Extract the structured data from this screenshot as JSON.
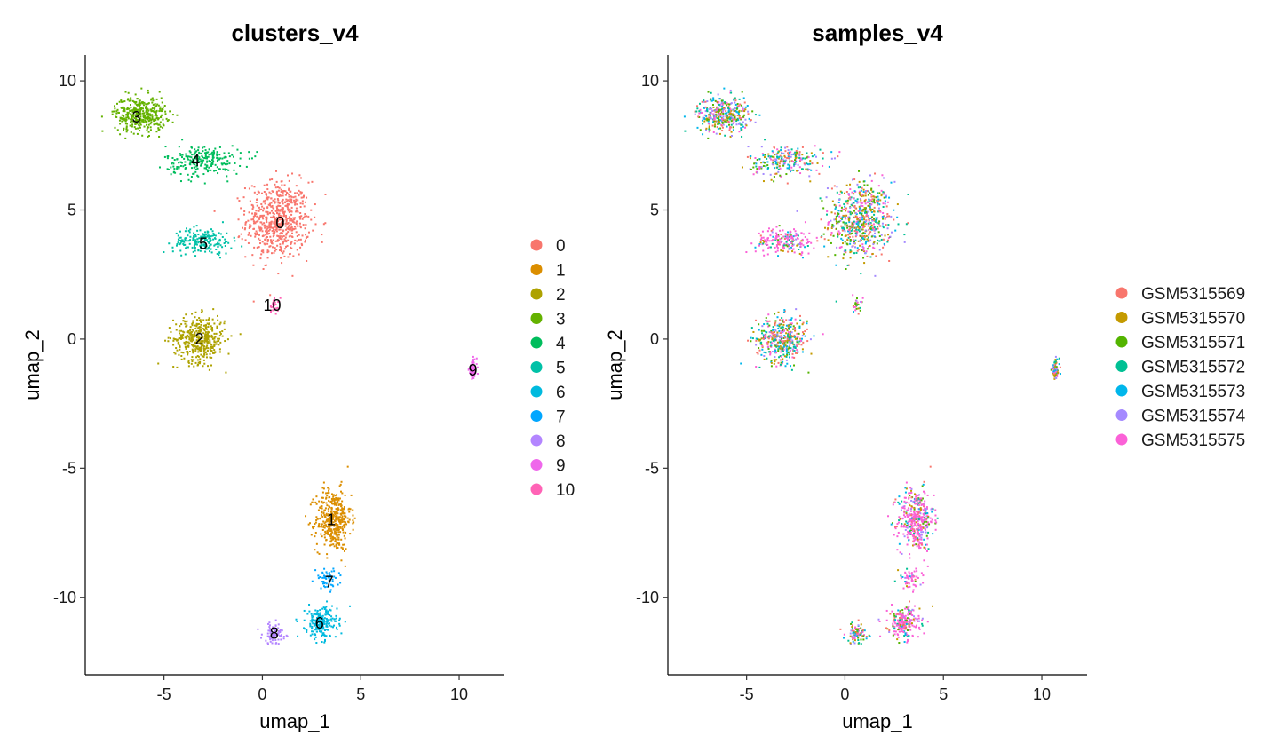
{
  "chart_data": [
    {
      "type": "scatter",
      "title": "clusters_v4",
      "xlabel": "umap_1",
      "ylabel": "umap_2",
      "xlim": [
        -9,
        12.3
      ],
      "ylim": [
        -13,
        11
      ],
      "xticks": [
        -5,
        0,
        5,
        10
      ],
      "yticks": [
        -10,
        -5,
        0,
        5,
        10
      ],
      "xtick_labels": [
        "-5",
        "0",
        "5",
        "10"
      ],
      "ytick_labels": [
        "-10",
        "-5",
        "0",
        "5",
        "10"
      ],
      "grid": false,
      "legend_position": "right",
      "series": [
        {
          "name": "0",
          "color": "#F8766D",
          "center": [
            0.8,
            4.6
          ],
          "spread": [
            1.6,
            1.5
          ],
          "n": 650
        },
        {
          "name": "1",
          "color": "#DB8E00",
          "center": [
            3.6,
            -7.0
          ],
          "spread": [
            0.9,
            1.2
          ],
          "n": 420
        },
        {
          "name": "2",
          "color": "#AEA200",
          "center": [
            -3.2,
            0.0
          ],
          "spread": [
            1.3,
            0.9
          ],
          "n": 420
        },
        {
          "name": "3",
          "color": "#64B200",
          "center": [
            -6.2,
            8.7
          ],
          "spread": [
            1.3,
            0.7
          ],
          "n": 380
        },
        {
          "name": "4",
          "color": "#00BD5C",
          "center": [
            -3.0,
            6.9
          ],
          "spread": [
            1.9,
            0.6
          ],
          "n": 240
        },
        {
          "name": "5",
          "color": "#00C1A7",
          "center": [
            -3.0,
            3.8
          ],
          "spread": [
            1.5,
            0.5
          ],
          "n": 190
        },
        {
          "name": "6",
          "color": "#00BADE",
          "center": [
            3.0,
            -11.0
          ],
          "spread": [
            0.8,
            0.6
          ],
          "n": 230
        },
        {
          "name": "7",
          "color": "#00A6FF",
          "center": [
            3.3,
            -9.3
          ],
          "spread": [
            0.6,
            0.4
          ],
          "n": 60
        },
        {
          "name": "8",
          "color": "#B385FF",
          "center": [
            0.6,
            -11.4
          ],
          "spread": [
            0.6,
            0.4
          ],
          "n": 90
        },
        {
          "name": "9",
          "color": "#EF67EB",
          "center": [
            10.7,
            -1.2
          ],
          "spread": [
            0.2,
            0.4
          ],
          "n": 80
        },
        {
          "name": "10",
          "color": "#FF63B6",
          "center": [
            0.6,
            1.3
          ],
          "spread": [
            0.3,
            0.3
          ],
          "n": 25
        }
      ],
      "cluster_labels": [
        {
          "text": "0",
          "x": 0.9,
          "y": 4.5
        },
        {
          "text": "1",
          "x": 3.5,
          "y": -7.0
        },
        {
          "text": "2",
          "x": -3.2,
          "y": 0.0
        },
        {
          "text": "3",
          "x": -6.4,
          "y": 8.6
        },
        {
          "text": "4",
          "x": -3.4,
          "y": 6.9
        },
        {
          "text": "5",
          "x": -3.0,
          "y": 3.7
        },
        {
          "text": "6",
          "x": 2.9,
          "y": -11.0
        },
        {
          "text": "7",
          "x": 3.4,
          "y": -9.4
        },
        {
          "text": "8",
          "x": 0.6,
          "y": -11.4
        },
        {
          "text": "9",
          "x": 10.7,
          "y": -1.2
        },
        {
          "text": "10",
          "x": 0.5,
          "y": 1.3
        }
      ]
    },
    {
      "type": "scatter",
      "title": "samples_v4",
      "xlabel": "umap_1",
      "ylabel": "umap_2",
      "xlim": [
        -9,
        12.3
      ],
      "ylim": [
        -13,
        11
      ],
      "xticks": [
        -5,
        0,
        5,
        10
      ],
      "yticks": [
        -10,
        -5,
        0,
        5,
        10
      ],
      "xtick_labels": [
        "-5",
        "0",
        "5",
        "10"
      ],
      "ytick_labels": [
        "-10",
        "-5",
        "0",
        "5",
        "10"
      ],
      "grid": false,
      "legend_position": "right",
      "series": [
        {
          "name": "GSM5315569",
          "color": "#F8766D"
        },
        {
          "name": "GSM5315570",
          "color": "#C49A00"
        },
        {
          "name": "GSM5315571",
          "color": "#53B400"
        },
        {
          "name": "GSM5315572",
          "color": "#00C094"
        },
        {
          "name": "GSM5315573",
          "color": "#00B6EB"
        },
        {
          "name": "GSM5315574",
          "color": "#A58AFF"
        },
        {
          "name": "GSM5315575",
          "color": "#FB61D7"
        }
      ]
    }
  ]
}
